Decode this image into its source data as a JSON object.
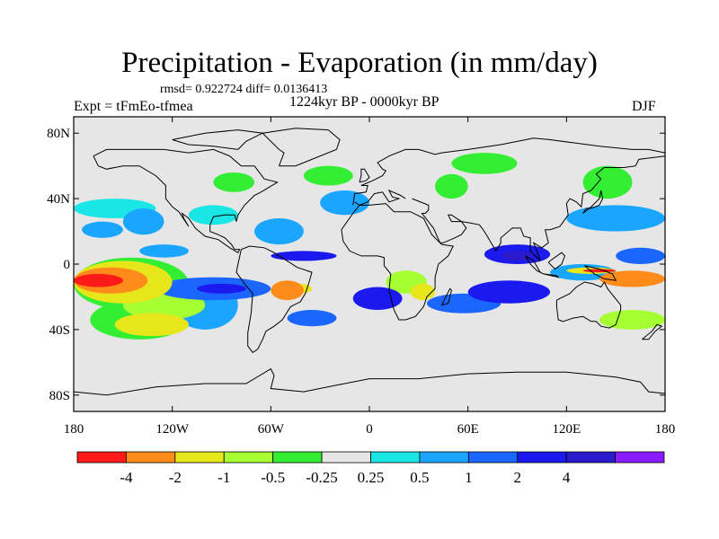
{
  "header": {
    "title": "Precipitation - Evaporation (in mm/day)",
    "stats": "rmsd= 0.922724 diff= 0.0136413",
    "experiment": "Expt = tFmEo-tfmea",
    "period": "1224kyr BP - 0000kyr BP",
    "season": "DJF"
  },
  "chart_data": {
    "type": "heatmap",
    "projection": "cylindrical equidistant",
    "lon_range": [
      -180,
      180
    ],
    "lat_range": [
      -90,
      90
    ],
    "x_ticks": [
      {
        "value": -180,
        "label": "180"
      },
      {
        "value": -120,
        "label": "120W"
      },
      {
        "value": -60,
        "label": "60W"
      },
      {
        "value": 0,
        "label": "0"
      },
      {
        "value": 60,
        "label": "60E"
      },
      {
        "value": 120,
        "label": "120E"
      },
      {
        "value": 180,
        "label": "180"
      }
    ],
    "y_ticks": [
      {
        "value": 80,
        "label": "80N"
      },
      {
        "value": 40,
        "label": "40N"
      },
      {
        "value": 0,
        "label": "0"
      },
      {
        "value": -40,
        "label": "40S"
      },
      {
        "value": -80,
        "label": "80S"
      }
    ],
    "colorbar": {
      "colors": [
        "#ff1a1a",
        "#ff8c1a",
        "#e6e61a",
        "#a6ff33",
        "#33ee33",
        "#e6e6e6",
        "#1ae6e6",
        "#1aa6ff",
        "#1a66ff",
        "#1a1aee",
        "#2b1acc",
        "#8c1aff"
      ],
      "boundary_labels": [
        "-4",
        "-2",
        "-1",
        "-0.5",
        "-0.25",
        "0.25",
        "0.5",
        "1",
        "2",
        "4"
      ],
      "labeled_boundaries": [
        1,
        2,
        3,
        4,
        5,
        6,
        7,
        8,
        9,
        10
      ]
    },
    "background_color": "#e6e6e6",
    "regions": [
      {
        "lon": [
          -180,
          -150
        ],
        "lat": [
          -14,
          -6
        ],
        "level": 0
      },
      {
        "lon": [
          -180,
          -135
        ],
        "lat": [
          -18,
          -2
        ],
        "level": 1
      },
      {
        "lon": [
          -180,
          -120
        ],
        "lat": [
          -24,
          2
        ],
        "level": 2
      },
      {
        "lon": [
          -180,
          -110
        ],
        "lat": [
          -28,
          4
        ],
        "level": 4
      },
      {
        "lon": [
          -150,
          -100
        ],
        "lat": [
          -34,
          -16
        ],
        "level": 3
      },
      {
        "lon": [
          -170,
          -110
        ],
        "lat": [
          -46,
          -22
        ],
        "level": 4
      },
      {
        "lon": [
          -155,
          -110
        ],
        "lat": [
          -44,
          -30
        ],
        "level": 2
      },
      {
        "lon": [
          -120,
          -80
        ],
        "lat": [
          -40,
          -10
        ],
        "level": 7
      },
      {
        "lon": [
          -130,
          -60
        ],
        "lat": [
          -22,
          -8
        ],
        "level": 8
      },
      {
        "lon": [
          -105,
          -75
        ],
        "lat": [
          -18,
          -12
        ],
        "level": 9
      },
      {
        "lon": [
          -180,
          -130
        ],
        "lat": [
          28,
          40
        ],
        "level": 6
      },
      {
        "lon": [
          -175,
          -150
        ],
        "lat": [
          16,
          26
        ],
        "level": 7
      },
      {
        "lon": [
          -150,
          -125
        ],
        "lat": [
          18,
          34
        ],
        "level": 7
      },
      {
        "lon": [
          -140,
          -110
        ],
        "lat": [
          4,
          12
        ],
        "level": 7
      },
      {
        "lon": [
          -110,
          -80
        ],
        "lat": [
          24,
          36
        ],
        "level": 6
      },
      {
        "lon": [
          -95,
          -70
        ],
        "lat": [
          44,
          56
        ],
        "level": 4
      },
      {
        "lon": [
          -70,
          -40
        ],
        "lat": [
          12,
          28
        ],
        "level": 7
      },
      {
        "lon": [
          -60,
          -20
        ],
        "lat": [
          2,
          8
        ],
        "level": 9
      },
      {
        "lon": [
          -60,
          -40
        ],
        "lat": [
          -22,
          -10
        ],
        "level": 1
      },
      {
        "lon": [
          -50,
          -35
        ],
        "lat": [
          -18,
          -12
        ],
        "level": 2
      },
      {
        "lon": [
          -50,
          -20
        ],
        "lat": [
          -38,
          -28
        ],
        "level": 8
      },
      {
        "lon": [
          -40,
          -10
        ],
        "lat": [
          48,
          60
        ],
        "level": 4
      },
      {
        "lon": [
          -30,
          0
        ],
        "lat": [
          30,
          45
        ],
        "level": 7
      },
      {
        "lon": [
          -10,
          20
        ],
        "lat": [
          -28,
          -14
        ],
        "level": 9
      },
      {
        "lon": [
          10,
          35
        ],
        "lat": [
          -18,
          -4
        ],
        "level": 3
      },
      {
        "lon": [
          25,
          40
        ],
        "lat": [
          -22,
          -12
        ],
        "level": 2
      },
      {
        "lon": [
          35,
          80
        ],
        "lat": [
          -30,
          -18
        ],
        "level": 8
      },
      {
        "lon": [
          60,
          110
        ],
        "lat": [
          -24,
          -10
        ],
        "level": 9
      },
      {
        "lon": [
          70,
          110
        ],
        "lat": [
          0,
          12
        ],
        "level": 9
      },
      {
        "lon": [
          80,
          100
        ],
        "lat": [
          2,
          8
        ],
        "level": 10
      },
      {
        "lon": [
          110,
          150
        ],
        "lat": [
          -10,
          0
        ],
        "level": 7
      },
      {
        "lon": [
          120,
          150
        ],
        "lat": [
          -6,
          -2
        ],
        "level": 2
      },
      {
        "lon": [
          130,
          150
        ],
        "lat": [
          -5,
          -3
        ],
        "level": 0
      },
      {
        "lon": [
          140,
          180
        ],
        "lat": [
          -14,
          -4
        ],
        "level": 1
      },
      {
        "lon": [
          150,
          180
        ],
        "lat": [
          0,
          10
        ],
        "level": 8
      },
      {
        "lon": [
          120,
          180
        ],
        "lat": [
          20,
          36
        ],
        "level": 7
      },
      {
        "lon": [
          130,
          160
        ],
        "lat": [
          40,
          60
        ],
        "level": 4
      },
      {
        "lon": [
          40,
          60
        ],
        "lat": [
          40,
          55
        ],
        "level": 4
      },
      {
        "lon": [
          50,
          90
        ],
        "lat": [
          55,
          68
        ],
        "level": 4
      },
      {
        "lon": [
          140,
          180
        ],
        "lat": [
          -40,
          -28
        ],
        "level": 3
      }
    ]
  }
}
